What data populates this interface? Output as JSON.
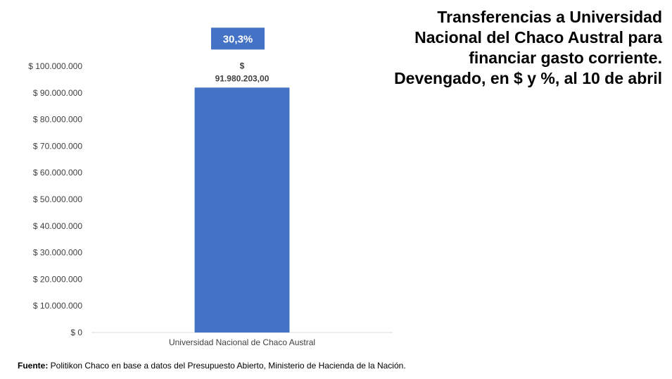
{
  "title_lines": [
    "Transferencias a Universidad",
    "Nacional del Chaco Austral para",
    "financiar gasto corriente.",
    "Devengado, en $ y %, al 10 de abril"
  ],
  "source": {
    "label": "Fuente:",
    "text": " Politikon Chaco en base a datos del Presupuesto Abierto, Ministerio de Hacienda de la Nación."
  },
  "chart_data": {
    "type": "bar",
    "categories": [
      "Universidad Nacional de Chaco Austral"
    ],
    "values": [
      91980203.0
    ],
    "value_labels": [
      "$",
      "91.980.203,00"
    ],
    "percent_label": "30,3%",
    "ylim": [
      0,
      100000000
    ],
    "yticks": [
      {
        "value": 0,
        "label": "$ 0"
      },
      {
        "value": 10000000,
        "label": "$ 10.000.000"
      },
      {
        "value": 20000000,
        "label": "$ 20.000.000"
      },
      {
        "value": 30000000,
        "label": "$ 30.000.000"
      },
      {
        "value": 40000000,
        "label": "$ 40.000.000"
      },
      {
        "value": 50000000,
        "label": "$ 50.000.000"
      },
      {
        "value": 60000000,
        "label": "$ 60.000.000"
      },
      {
        "value": 70000000,
        "label": "$ 70.000.000"
      },
      {
        "value": 80000000,
        "label": "$ 80.000.000"
      },
      {
        "value": 90000000,
        "label": "$ 90.000.000"
      },
      {
        "value": 100000000,
        "label": "$ 100.000.000"
      }
    ],
    "grid": false,
    "colors": {
      "bar": "#4472C4",
      "badge": "#4472C4",
      "badge_text": "#ffffff",
      "axis": "#d9d9d9"
    }
  }
}
